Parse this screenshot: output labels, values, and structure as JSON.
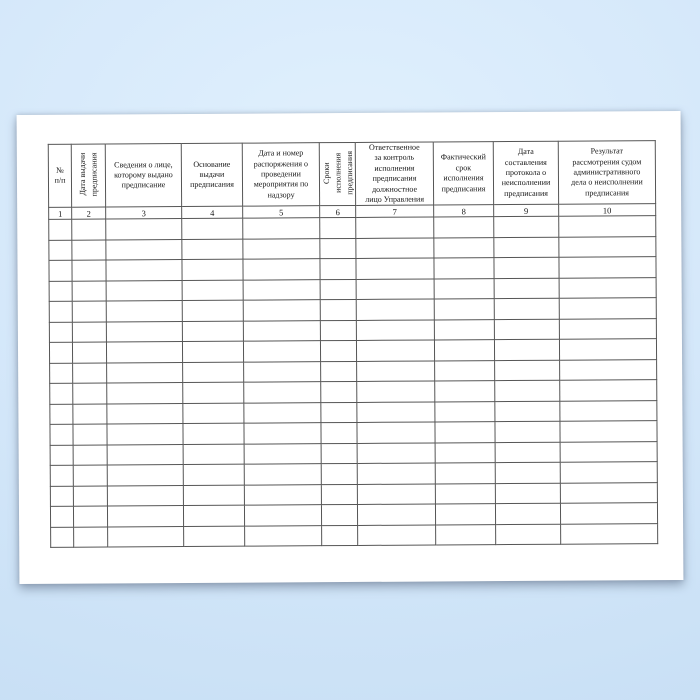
{
  "page": {
    "background_top_color": "#dff0fd",
    "background_bottom_color": "#c6def4",
    "paper_color": "#ffffff",
    "grid_line_color": "#565656",
    "text_color": "#151515"
  },
  "table": {
    "empty_row_count": 16,
    "columns": [
      {
        "number": "1",
        "header": "№\nп/п",
        "orientation": "horizontal"
      },
      {
        "number": "2",
        "header": "Дата выдачи\nпредписания",
        "orientation": "vertical"
      },
      {
        "number": "3",
        "header": "Сведения о лице,\nкоторому выдано\nпредписание",
        "orientation": "horizontal"
      },
      {
        "number": "4",
        "header": "Основание\nвыдачи\nпредписания",
        "orientation": "horizontal"
      },
      {
        "number": "5",
        "header": "Дата и номер\nраспоряжения о\nпроведении\nмероприятия по\nнадзору",
        "orientation": "horizontal"
      },
      {
        "number": "6",
        "header": "Сроки\nисполнения\nпредписания",
        "orientation": "vertical"
      },
      {
        "number": "7",
        "header": "Ответственное\nза контроль\nисполнения\nпредписания\nдолжностное\nлицо Управления",
        "orientation": "horizontal"
      },
      {
        "number": "8",
        "header": "Фактический\nсрок\nисполнения\nпредписания",
        "orientation": "horizontal"
      },
      {
        "number": "9",
        "header": "Дата\nсоставления\nпротокола о\nнеисполнении\nпредписания",
        "orientation": "horizontal"
      },
      {
        "number": "10",
        "header": "Результат\nрассмотрения судом\nадминистративного\nдела о неисполнении\nпредписания",
        "orientation": "horizontal"
      }
    ]
  }
}
